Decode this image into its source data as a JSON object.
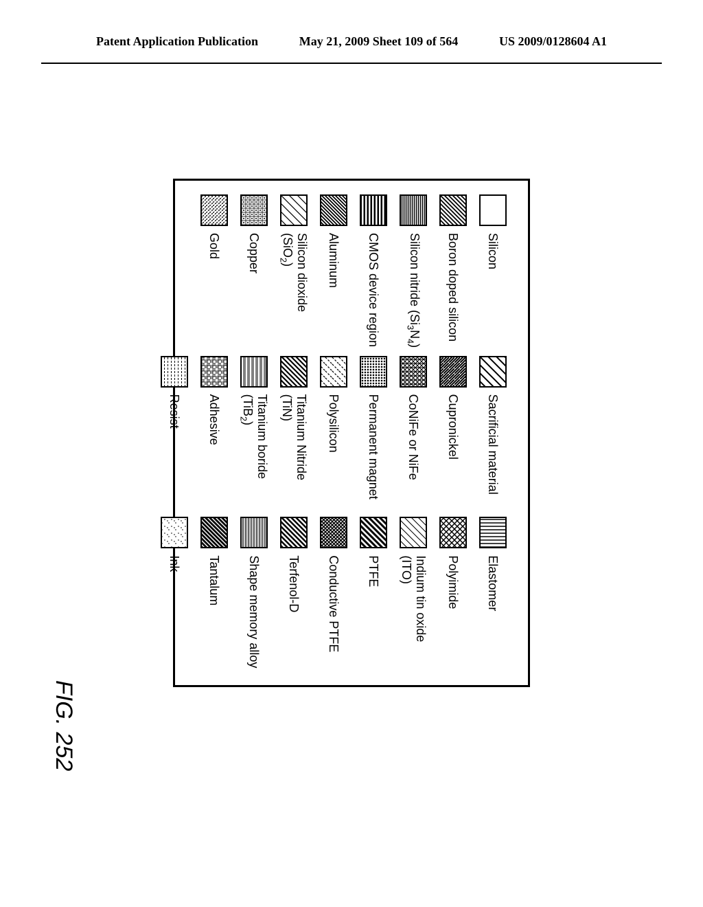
{
  "header": {
    "left": "Patent Application Publication",
    "center": "May 21, 2009  Sheet 109 of 564",
    "right": "US 2009/0128604 A1"
  },
  "figure": {
    "label": "FIG. 252",
    "border_color": "#000000",
    "font_family": "Comic Sans MS",
    "font_size": 18,
    "columns": 3,
    "rows": 9,
    "swatch_size": {
      "w": 42,
      "h": 36
    }
  },
  "legend": [
    {
      "label": "Silicon",
      "pattern": "blank"
    },
    {
      "label": "Sacrificial material",
      "pattern": "diag-rl-sparse"
    },
    {
      "label": "Elastomer",
      "pattern": "vertical"
    },
    {
      "label": "Boron doped silicon",
      "pattern": "diag-rl-dense"
    },
    {
      "label": "Cupronickel",
      "pattern": "diag-lr-med"
    },
    {
      "label": "Polyimide",
      "pattern": "crosshatch-diag"
    },
    {
      "label_html": "Silicon nitride (Si<sub>3</sub>N<sub>4</sub>)",
      "pattern": "horiz-dense"
    },
    {
      "label": "CoNiFe or NiFe",
      "pattern": "dense-mix"
    },
    {
      "label": "Indium tin oxide (ITO)",
      "pattern": "diag-rl-light"
    },
    {
      "label": "CMOS device region",
      "pattern": "horiz-thick"
    },
    {
      "label": "Permanent magnet",
      "pattern": "dots-dense"
    },
    {
      "label": "PTFE",
      "pattern": "diag-rl-thick"
    },
    {
      "label": "Aluminum",
      "pattern": "diag-lr-dense"
    },
    {
      "label": "Polysilicon",
      "pattern": "dash-diag"
    },
    {
      "label": "Conductive PTFE",
      "pattern": "crosshatch-dense"
    },
    {
      "label_html": "Silicon dioxide (SiO<sub>2</sub>)",
      "pattern": "diag-lr-sparse"
    },
    {
      "label": "Titanium Nitride (TiN)",
      "pattern": "diag-varied"
    },
    {
      "label": "Terfenol-D",
      "pattern": "diag-lr-thick"
    },
    {
      "label": "Copper",
      "pattern": "grid-dots"
    },
    {
      "label_html": "Titanium boride (TiB<sub>2</sub>)",
      "pattern": "horiz-double"
    },
    {
      "label": "Shape memory alloy",
      "pattern": "horiz-multi"
    },
    {
      "label": "Gold",
      "pattern": "dots-grid"
    },
    {
      "label": "Adhesive",
      "pattern": "woven"
    },
    {
      "label": "Tantalum",
      "pattern": "diag-lr-bold"
    },
    {
      "label": "",
      "pattern": "none"
    },
    {
      "label": "Resist",
      "pattern": "dash-horiz"
    },
    {
      "label": "Ink",
      "pattern": "dots-sparse"
    }
  ],
  "patterns": {
    "stroke": "#000000",
    "background": "#ffffff"
  }
}
